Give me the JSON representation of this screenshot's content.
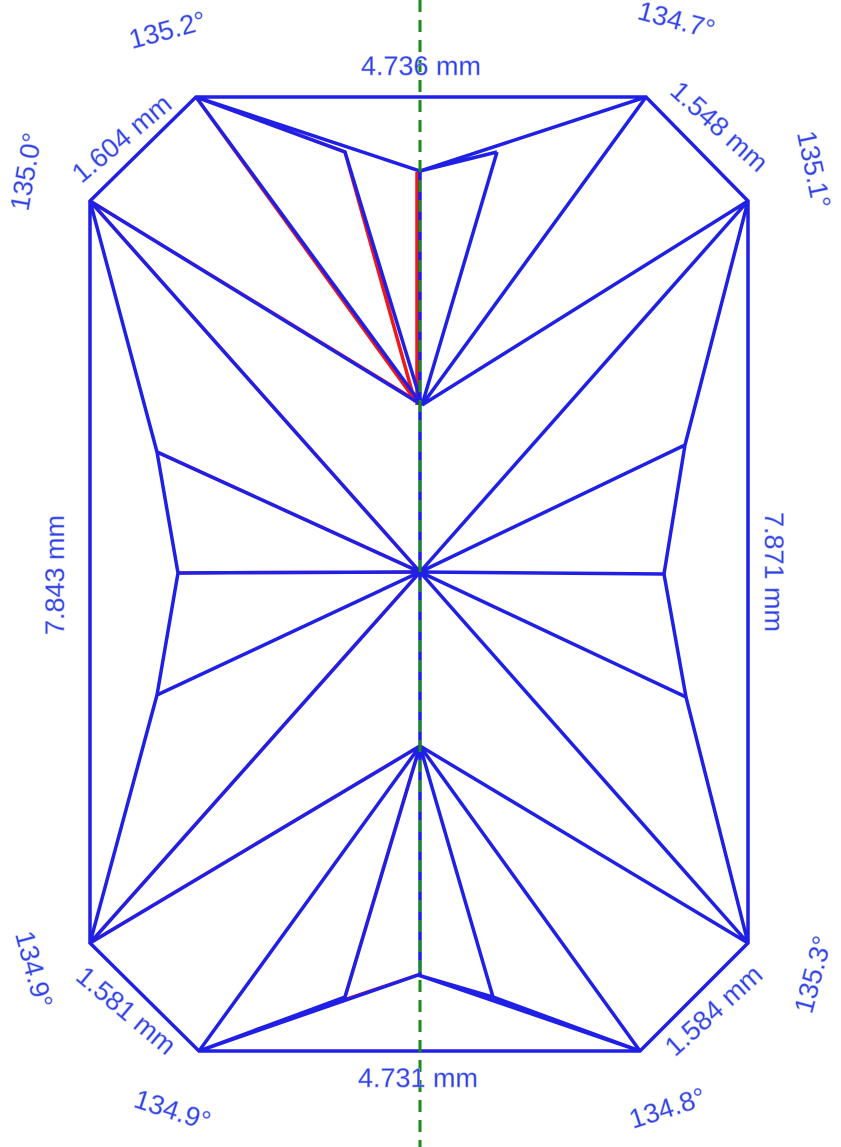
{
  "dimensions": {
    "top": "4.736 mm",
    "bottom": "4.731 mm",
    "left": "7.843 mm",
    "right": "7.871 mm"
  },
  "corner_lengths": {
    "top_left": "1.604 mm",
    "top_right": "1.548 mm",
    "bottom_left": "1.581 mm",
    "bottom_right": "1.584 mm"
  },
  "angles": {
    "top_left_upper": "135.2°",
    "top_left_side": "135.0°",
    "top_right_upper": "134.7°",
    "top_right_side": "135.1°",
    "bottom_left_side": "134.9°",
    "bottom_left_lower": "134.9°",
    "bottom_right_side": "135.3°",
    "bottom_right_lower": "134.8°"
  }
}
